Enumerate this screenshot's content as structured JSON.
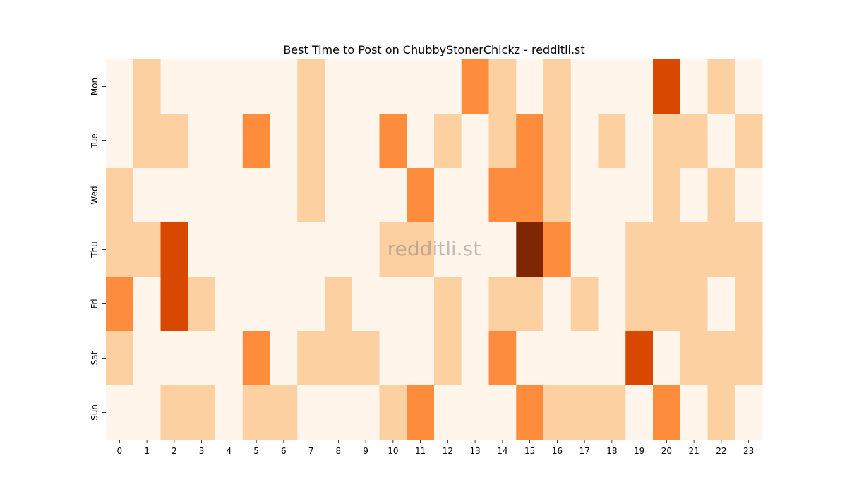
{
  "chart_data": {
    "type": "heatmap",
    "title": "Best Time to Post on ChubbyStonerChickz - redditli.st",
    "x_categories": [
      "0",
      "1",
      "2",
      "3",
      "4",
      "5",
      "6",
      "7",
      "8",
      "9",
      "10",
      "11",
      "12",
      "13",
      "14",
      "15",
      "16",
      "17",
      "18",
      "19",
      "20",
      "21",
      "22",
      "23"
    ],
    "y_categories": [
      "Mon",
      "Tue",
      "Wed",
      "Thu",
      "Fri",
      "Sat",
      "Sun"
    ],
    "values": [
      [
        0,
        1,
        0,
        0,
        0,
        0,
        0,
        1,
        0,
        0,
        0,
        0,
        0,
        2,
        1,
        0,
        1,
        0,
        0,
        0,
        3,
        0,
        1,
        0
      ],
      [
        0,
        1,
        1,
        0,
        0,
        2,
        0,
        1,
        0,
        0,
        2,
        0,
        1,
        0,
        1,
        2,
        1,
        0,
        1,
        0,
        1,
        1,
        0,
        1
      ],
      [
        1,
        0,
        0,
        0,
        0,
        0,
        0,
        1,
        0,
        0,
        0,
        2,
        0,
        0,
        2,
        2,
        1,
        0,
        0,
        0,
        1,
        0,
        1,
        0
      ],
      [
        1,
        1,
        3,
        0,
        0,
        0,
        0,
        0,
        0,
        0,
        1,
        1,
        0,
        0,
        0,
        4,
        2,
        0,
        0,
        1,
        1,
        1,
        1,
        1
      ],
      [
        2,
        0,
        3,
        1,
        0,
        0,
        0,
        0,
        1,
        0,
        0,
        0,
        1,
        0,
        1,
        1,
        0,
        1,
        0,
        1,
        1,
        1,
        0,
        1
      ],
      [
        1,
        0,
        0,
        0,
        0,
        2,
        0,
        1,
        1,
        1,
        0,
        0,
        1,
        0,
        2,
        0,
        0,
        0,
        0,
        3,
        0,
        1,
        1,
        1
      ],
      [
        0,
        0,
        1,
        1,
        0,
        1,
        1,
        0,
        0,
        0,
        1,
        2,
        0,
        0,
        0,
        2,
        1,
        1,
        1,
        0,
        2,
        0,
        1,
        0
      ]
    ],
    "colorscale": [
      "#fff5eb",
      "#fdd0a2",
      "#fd8d3c",
      "#d94801",
      "#7f2704"
    ],
    "colorscale_name": "Oranges",
    "watermark": "redditli.st",
    "legend": "none",
    "grid": false
  }
}
